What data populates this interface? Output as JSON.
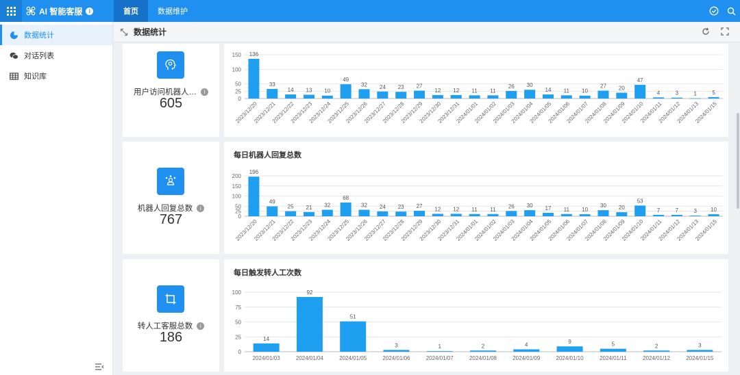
{
  "app": {
    "title": "AI 智能客服"
  },
  "nav": {
    "tabs": [
      {
        "label": "首页"
      },
      {
        "label": "数据维护"
      }
    ]
  },
  "sidebar": {
    "items": [
      {
        "label": "数据统计"
      },
      {
        "label": "对话列表"
      },
      {
        "label": "知识库"
      }
    ]
  },
  "page": {
    "title": "数据统计"
  },
  "colors": {
    "accent": "#1f8ff0",
    "bar": "#1f9ff0"
  },
  "stats": [
    {
      "label": "用户访问机器人…",
      "value": "605"
    },
    {
      "label": "机器人回复总数",
      "value": "767"
    },
    {
      "label": "转人工客服总数",
      "value": "186"
    }
  ],
  "chart_data": [
    {
      "type": "bar",
      "title": "",
      "categories": [
        "2023/12/20",
        "2023/12/21",
        "2023/12/22",
        "2023/12/23",
        "2023/12/24",
        "2023/12/25",
        "2023/12/26",
        "2023/12/27",
        "2023/12/28",
        "2023/12/29",
        "2023/12/30",
        "2023/12/31",
        "2024/01/01",
        "2024/01/02",
        "2024/01/03",
        "2024/01/04",
        "2024/01/05",
        "2024/01/06",
        "2024/01/07",
        "2024/01/08",
        "2024/01/09",
        "2024/01/10",
        "2024/01/11",
        "2024/01/12",
        "2024/01/13",
        "2024/01/15"
      ],
      "values": [
        136,
        33,
        14,
        13,
        10,
        49,
        32,
        24,
        23,
        27,
        12,
        12,
        11,
        11,
        26,
        30,
        14,
        11,
        10,
        27,
        20,
        47,
        4,
        3,
        1,
        5
      ],
      "yticks": [
        0,
        25,
        50,
        100,
        150
      ],
      "ylim": [
        0,
        150
      ]
    },
    {
      "type": "bar",
      "title": "每日机器人回复总数",
      "categories": [
        "2023/12/20",
        "2023/12/21",
        "2023/12/22",
        "2023/12/23",
        "2023/12/24",
        "2023/12/25",
        "2023/12/26",
        "2023/12/27",
        "2023/12/28",
        "2023/12/29",
        "2023/12/30",
        "2023/12/31",
        "2024/01/01",
        "2024/01/02",
        "2024/01/03",
        "2024/01/04",
        "2024/01/05",
        "2024/01/06",
        "2024/01/07",
        "2024/01/08",
        "2024/01/09",
        "2024/01/10",
        "2024/01/11",
        "2024/01/12",
        "2024/01/13",
        "2024/01/15"
      ],
      "values": [
        196,
        49,
        25,
        21,
        32,
        68,
        32,
        24,
        23,
        27,
        12,
        12,
        11,
        11,
        26,
        30,
        17,
        11,
        10,
        30,
        20,
        53,
        7,
        7,
        3,
        10
      ],
      "yticks": [
        0,
        25,
        50,
        100,
        150,
        200
      ],
      "ylim": [
        0,
        200
      ]
    },
    {
      "type": "bar",
      "title": "每日触发转人工次数",
      "categories": [
        "2024/01/03",
        "2024/01/04",
        "2024/01/05",
        "2024/01/06",
        "2024/01/07",
        "2024/01/08",
        "2024/01/09",
        "2024/01/10",
        "2024/01/11",
        "2024/01/12",
        "2024/01/15"
      ],
      "values": [
        14,
        92,
        51,
        3,
        1,
        2,
        4,
        9,
        5,
        2,
        3
      ],
      "yticks": [
        0,
        25,
        50,
        75,
        100
      ],
      "ylim": [
        0,
        100
      ]
    }
  ]
}
